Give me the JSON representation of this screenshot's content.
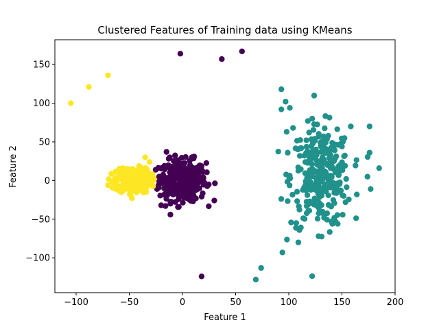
{
  "chart_data": {
    "type": "scatter",
    "title": "Clustered Features of Training data using KMeans",
    "xlabel": "Feature 1",
    "ylabel": "Feature 2",
    "xlim": [
      -120,
      200
    ],
    "ylim": [
      -145,
      182
    ],
    "xticks": [
      -100,
      -50,
      0,
      50,
      100,
      150,
      200
    ],
    "yticks": [
      -100,
      -50,
      0,
      50,
      100,
      150
    ],
    "grid": false,
    "legend": "none",
    "colors": {
      "purple": "#440154",
      "teal": "#21918c",
      "yellow": "#fde725"
    },
    "clusters": [
      {
        "color": "#440154",
        "center": [
          0,
          0
        ],
        "spread": [
          11,
          13
        ],
        "generated_count": 320,
        "points": [
          [
            -2,
            164
          ],
          [
            37,
            157
          ],
          [
            56,
            167
          ],
          [
            18,
            -124
          ],
          [
            -15,
            37
          ],
          [
            11,
            31
          ],
          [
            -20,
            -32
          ],
          [
            -12,
            30
          ],
          [
            -22,
            5
          ],
          [
            15,
            10
          ],
          [
            10,
            -20
          ],
          [
            -16,
            -33
          ]
        ]
      },
      {
        "color": "#21918c",
        "center": [
          130,
          5
        ],
        "spread": [
          14,
          32
        ],
        "generated_count": 300,
        "points": [
          [
            93,
            118
          ],
          [
            97,
            102
          ],
          [
            93,
            92
          ],
          [
            101,
            94
          ],
          [
            122,
            80
          ],
          [
            176,
            70
          ],
          [
            176,
            36
          ],
          [
            174,
            5
          ],
          [
            185,
            16
          ],
          [
            177,
            -11
          ],
          [
            164,
            -18
          ],
          [
            109,
            -80
          ],
          [
            107,
            -55
          ],
          [
            110,
            -64
          ],
          [
            94,
            -93
          ],
          [
            74,
            -113
          ],
          [
            69,
            -128
          ],
          [
            128,
            -72
          ],
          [
            146,
            -56
          ],
          [
            141,
            -56
          ],
          [
            154,
            2
          ],
          [
            150,
            44
          ],
          [
            153,
            19
          ],
          [
            98,
            63
          ],
          [
            104,
            68
          ],
          [
            99,
            36
          ]
        ]
      },
      {
        "color": "#fde725",
        "center": [
          -46,
          0
        ],
        "spread": [
          8,
          8
        ],
        "generated_count": 300,
        "points": [
          [
            -105,
            100
          ],
          [
            -88,
            121
          ],
          [
            -70,
            136
          ],
          [
            -35,
            30
          ],
          [
            -31,
            24
          ],
          [
            -70,
            -6
          ],
          [
            -66,
            -2
          ],
          [
            -56,
            16
          ],
          [
            -49,
            -18
          ],
          [
            -34,
            -10
          ]
        ]
      }
    ]
  }
}
